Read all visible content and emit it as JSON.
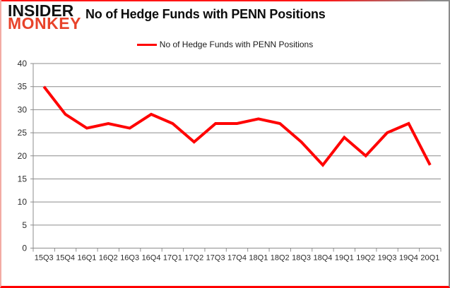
{
  "brand": {
    "line1": "INSIDER",
    "line2": "MONKEY",
    "monkey_color": "#e8432a"
  },
  "title": "No of Hedge Funds with PENN Positions",
  "legend": {
    "label": "No of Hedge Funds with PENN Positions",
    "line_color": "#ff0000"
  },
  "chart_data": {
    "type": "line",
    "title": "No of Hedge Funds with PENN Positions",
    "categories": [
      "15Q3",
      "15Q4",
      "16Q1",
      "16Q2",
      "16Q3",
      "16Q4",
      "17Q1",
      "17Q2",
      "17Q3",
      "17Q4",
      "18Q1",
      "18Q2",
      "18Q3",
      "18Q4",
      "19Q1",
      "19Q2",
      "19Q3",
      "19Q4",
      "20Q1"
    ],
    "series": [
      {
        "name": "No of Hedge Funds with PENN Positions",
        "color": "#ff0000",
        "values": [
          35,
          29,
          26,
          27,
          26,
          29,
          27,
          23,
          27,
          27,
          28,
          27,
          23,
          18,
          24,
          20,
          25,
          27,
          18
        ]
      }
    ],
    "xlabel": "",
    "ylabel": "",
    "ylim": [
      0,
      40
    ],
    "yticks": [
      0,
      5,
      10,
      15,
      20,
      25,
      30,
      35,
      40
    ],
    "grid": true,
    "legend_position": "top-center",
    "colors": {
      "grid": "#8c8c8c",
      "axis": "#8c8c8c",
      "tick_label": "#2b2b2b"
    }
  }
}
